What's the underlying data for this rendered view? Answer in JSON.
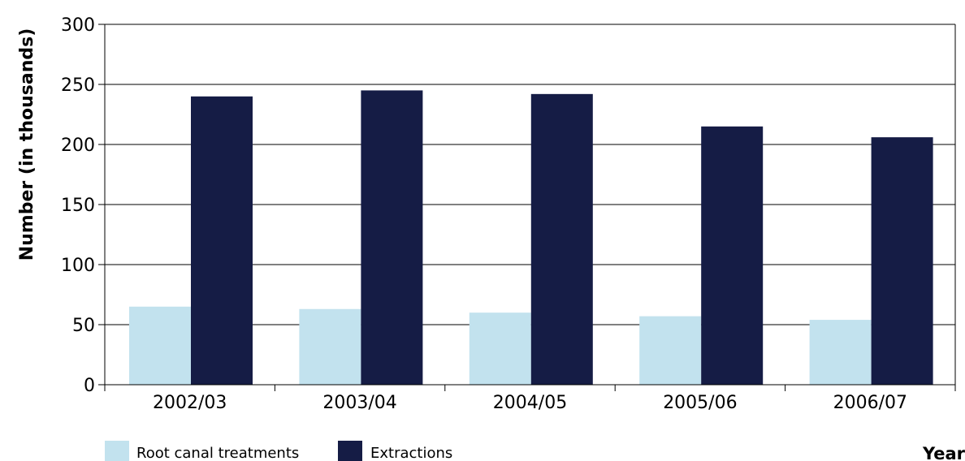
{
  "chart_data": {
    "type": "bar",
    "categories": [
      "2002/03",
      "2003/04",
      "2004/05",
      "2005/06",
      "2006/07"
    ],
    "series": [
      {
        "name": "Root canal treatments",
        "color": "#c2e2ee",
        "values": [
          65,
          63,
          60,
          57,
          54
        ]
      },
      {
        "name": "Extractions",
        "color": "#151c45",
        "values": [
          240,
          245,
          242,
          215,
          206
        ]
      }
    ],
    "title": "",
    "xlabel": "Year",
    "ylabel": "Number (in thousands)",
    "ylim": [
      0,
      300
    ],
    "yticks": [
      0,
      50,
      100,
      150,
      200,
      250,
      300
    ],
    "grid": true,
    "legend_position": "bottom-left"
  }
}
